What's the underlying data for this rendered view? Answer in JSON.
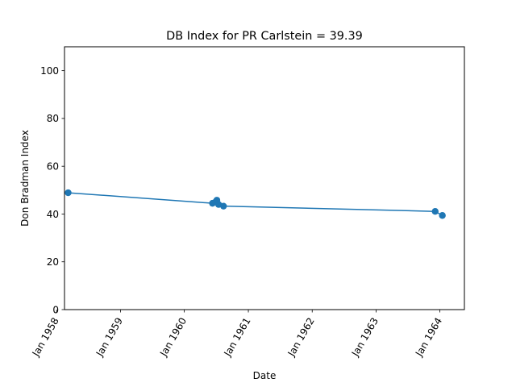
{
  "chart_data": {
    "type": "line",
    "title": "DB Index for PR Carlstein = 39.39",
    "xlabel": "Date",
    "ylabel": "Don Bradman Index",
    "ylim": [
      0,
      110
    ],
    "xlim": [
      "1958-02-15",
      "1964-05-20"
    ],
    "y_ticks": [
      0,
      20,
      40,
      60,
      80,
      100
    ],
    "x_ticks": [
      {
        "date": "1958-01-01",
        "label": "Jan 1958"
      },
      {
        "date": "1959-01-01",
        "label": "Jan 1959"
      },
      {
        "date": "1960-01-01",
        "label": "Jan 1960"
      },
      {
        "date": "1961-01-01",
        "label": "Jan 1961"
      },
      {
        "date": "1962-01-01",
        "label": "Jan 1962"
      },
      {
        "date": "1963-01-01",
        "label": "Jan 1963"
      },
      {
        "date": "1964-01-01",
        "label": "Jan 1964"
      }
    ],
    "grid": false,
    "color": "#1f77b4",
    "series": [
      {
        "points": [
          {
            "x": "1958-03-08",
            "y": 48.9
          },
          {
            "x": "1960-06-10",
            "y": 44.5
          },
          {
            "x": "1960-06-28",
            "y": 45.1
          },
          {
            "x": "1960-07-05",
            "y": 45.8
          },
          {
            "x": "1960-07-15",
            "y": 44.0
          },
          {
            "x": "1960-08-12",
            "y": 43.3
          },
          {
            "x": "1963-12-05",
            "y": 41.1
          },
          {
            "x": "1964-01-15",
            "y": 39.39
          }
        ]
      }
    ]
  }
}
